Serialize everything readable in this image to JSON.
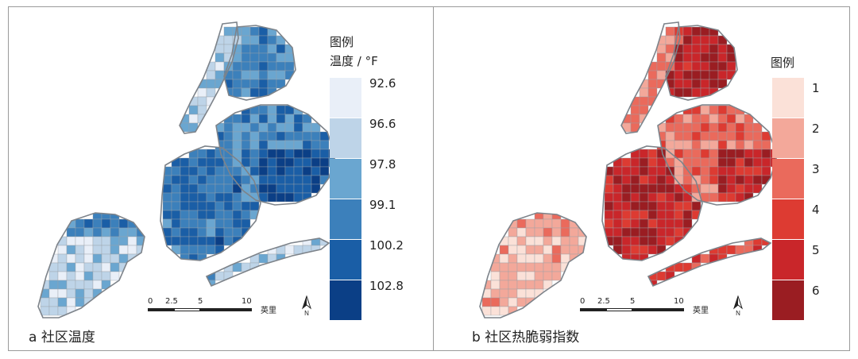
{
  "panels": [
    {
      "caption": "a 社区温度",
      "legend_title": "图例",
      "legend_subtitle": "温度 / °F",
      "legend_labels": [
        "92.6",
        "96.6",
        "97.8",
        "99.1",
        "100.2",
        "102.8"
      ],
      "legend_colors": [
        "#e9eff8",
        "#bed4e8",
        "#6aa6d0",
        "#3c80bb",
        "#1a5ea6",
        "#0b3f86"
      ],
      "scale": {
        "ticks": [
          "0",
          "2.5",
          "5",
          "10"
        ],
        "unit": "英里"
      },
      "north_label": "N"
    },
    {
      "caption": "b 社区热脆弱指数",
      "legend_title": "图例",
      "legend_labels": [
        "1",
        "2",
        "3",
        "4",
        "5",
        "6"
      ],
      "legend_colors": [
        "#fbe1d8",
        "#f3a89a",
        "#ea6a5c",
        "#dd3b32",
        "#c9262a",
        "#9a1d22"
      ],
      "scale": {
        "ticks": [
          "0",
          "2.5",
          "5",
          "10"
        ],
        "unit": "英里"
      },
      "north_label": "N"
    }
  ]
}
